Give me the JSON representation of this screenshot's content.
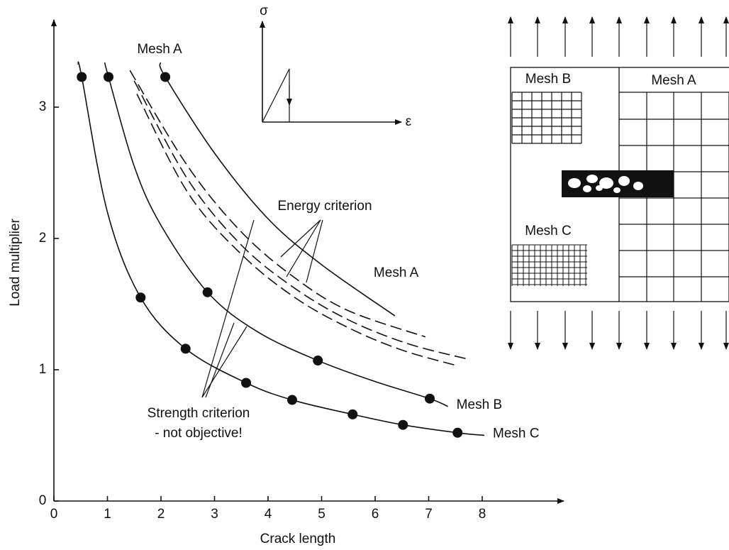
{
  "chart_data": {
    "type": "line",
    "x_label": "Crack length",
    "y_label": "Load multiplier",
    "xlim": [
      0,
      9.5
    ],
    "ylim": [
      0,
      3.6
    ],
    "xticks": [
      0,
      1,
      2,
      3,
      4,
      5,
      6,
      7,
      8
    ],
    "yticks": [
      0,
      1,
      2,
      3
    ],
    "series": [
      {
        "name": "Mesh C",
        "color": "#111111",
        "line_style": "solid",
        "x": [
          0.45,
          0.52,
          1.0,
          1.62,
          2.46,
          3.59,
          4.45,
          5.58,
          6.52,
          7.54,
          8.04
        ],
        "values": [
          3.33,
          3.23,
          2.2,
          1.55,
          1.16,
          0.9,
          0.77,
          0.66,
          0.58,
          0.52,
          0.5
        ],
        "markers": {
          "x": [
            0.52,
            1.62,
            2.46,
            3.59,
            4.45,
            5.58,
            6.52,
            7.54
          ],
          "values": [
            3.23,
            1.55,
            1.16,
            0.9,
            0.77,
            0.66,
            0.58,
            0.52
          ]
        }
      },
      {
        "name": "Mesh B",
        "color": "#111111",
        "line_style": "solid",
        "x": [
          0.95,
          1.02,
          1.5,
          2.0,
          2.87,
          3.8,
          4.93,
          6.0,
          7.02,
          7.36
        ],
        "values": [
          3.34,
          3.23,
          2.55,
          2.1,
          1.59,
          1.29,
          1.07,
          0.91,
          0.78,
          0.72
        ],
        "markers": {
          "x": [
            1.02,
            2.87,
            4.93,
            7.02
          ],
          "values": [
            3.23,
            1.59,
            1.07,
            0.78
          ]
        }
      },
      {
        "name": "Mesh A",
        "color": "#111111",
        "line_style": "solid",
        "x": [
          1.99,
          2.08,
          3.0,
          4.0,
          5.0,
          6.37
        ],
        "values": [
          3.34,
          3.23,
          2.65,
          2.15,
          1.8,
          1.41
        ],
        "markers": {
          "x": [
            2.08
          ],
          "values": [
            3.23
          ]
        }
      },
      {
        "color": "#111111",
        "line_style": "dashed",
        "x": [
          1.42,
          2.5,
          3.5,
          4.5,
          5.5,
          6.94
        ],
        "values": [
          3.28,
          2.55,
          2.05,
          1.7,
          1.45,
          1.25
        ]
      },
      {
        "color": "#111111",
        "line_style": "dashed",
        "x": [
          1.5,
          2.5,
          3.5,
          4.5,
          5.5,
          6.6,
          7.74
        ],
        "values": [
          3.2,
          2.45,
          1.95,
          1.62,
          1.38,
          1.2,
          1.08
        ]
      },
      {
        "color": "#111111",
        "line_style": "dashed",
        "x": [
          1.55,
          2.5,
          3.5,
          4.5,
          5.5,
          6.5,
          7.54
        ],
        "values": [
          3.1,
          2.35,
          1.88,
          1.55,
          1.32,
          1.15,
          1.03
        ]
      }
    ],
    "annotations": [
      "Mesh A",
      "Energy criterion",
      "Strength criterion",
      "- not objective!"
    ]
  },
  "stress_strain_inset": {
    "y_label": "σ",
    "x_label": "ε"
  },
  "mesh_diagram": {
    "labels": [
      "Mesh B",
      "Mesh A",
      "Mesh C"
    ]
  }
}
